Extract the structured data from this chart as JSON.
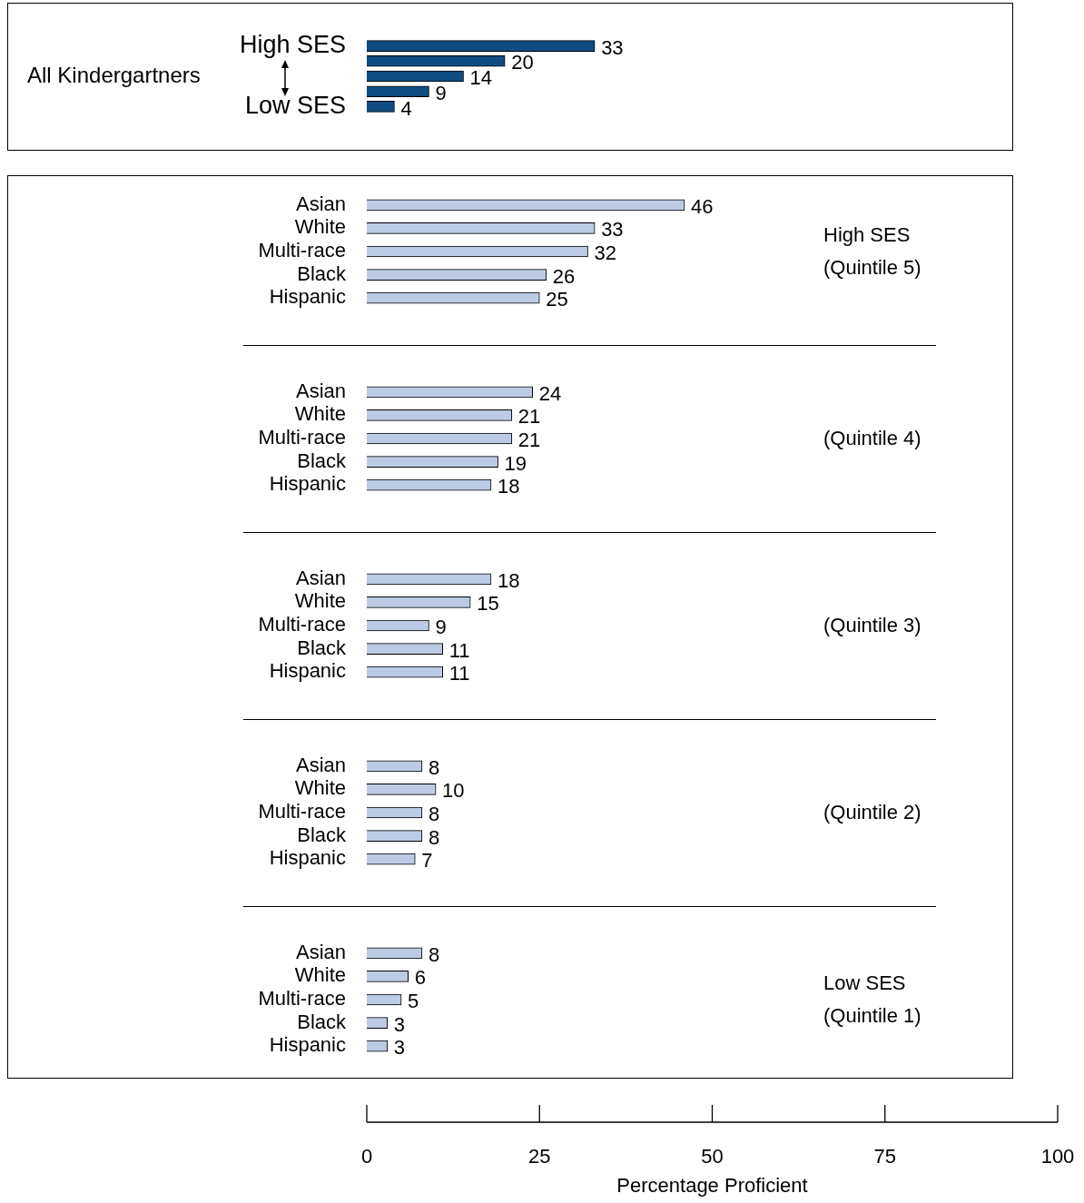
{
  "chart_data": [
    {
      "type": "bar",
      "orientation": "horizontal",
      "categories": [
        "High SES",
        null,
        null,
        null,
        "Low SES"
      ],
      "values": [
        33,
        20,
        14,
        9,
        4
      ],
      "color": "#0f4c81",
      "xlim": [
        0,
        100
      ],
      "xticks": [
        0,
        25,
        50,
        75,
        100
      ],
      "data_labels": true,
      "tick_labels": "y",
      "annotations": [
        "All Kindergartners"
      ]
    },
    {
      "type": "bar",
      "orientation": "horizontal",
      "categories": [
        "Asian",
        "White",
        "Multi-race",
        "Black",
        "Hispanic"
      ],
      "values": [
        46,
        33,
        32,
        26,
        25
      ],
      "color": "#bccbe3",
      "xlim": [
        0,
        100
      ],
      "xticks": [
        0,
        25,
        50,
        75,
        100
      ],
      "data_labels": true,
      "tick_labels": "y",
      "annotations": [
        "High SES",
        "(Quintile 5)"
      ]
    },
    {
      "type": "bar",
      "orientation": "horizontal",
      "categories": [
        "Asian",
        "White",
        "Multi-race",
        "Black",
        "Hispanic"
      ],
      "values": [
        24,
        21,
        21,
        19,
        18
      ],
      "color": "#bccbe3",
      "xlim": [
        0,
        100
      ],
      "xticks": [
        0,
        25,
        50,
        75,
        100
      ],
      "data_labels": true,
      "tick_labels": "y",
      "annotations": [
        "(Quintile 4)"
      ]
    },
    {
      "type": "bar",
      "orientation": "horizontal",
      "categories": [
        "Asian",
        "White",
        "Multi-race",
        "Black",
        "Hispanic"
      ],
      "values": [
        18,
        15,
        9,
        11,
        11
      ],
      "color": "#bccbe3",
      "xlim": [
        0,
        100
      ],
      "xticks": [
        0,
        25,
        50,
        75,
        100
      ],
      "data_labels": true,
      "tick_labels": "y",
      "annotations": [
        "(Quintile 3)"
      ]
    },
    {
      "type": "bar",
      "orientation": "horizontal",
      "categories": [
        "Asian",
        "White",
        "Multi-race",
        "Black",
        "Hispanic"
      ],
      "values": [
        8,
        10,
        8,
        8,
        7
      ],
      "color": "#bccbe3",
      "xlim": [
        0,
        100
      ],
      "xticks": [
        0,
        25,
        50,
        75,
        100
      ],
      "data_labels": true,
      "tick_labels": "y",
      "annotations": [
        "(Quintile 2)"
      ]
    },
    {
      "type": "bar",
      "orientation": "horizontal",
      "categories": [
        "Asian",
        "White",
        "Multi-race",
        "Black",
        "Hispanic"
      ],
      "values": [
        8,
        6,
        5,
        3,
        3
      ],
      "color": "#bccbe3",
      "xlim": [
        0,
        100
      ],
      "xticks": [
        0,
        25,
        50,
        75,
        100
      ],
      "data_labels": true,
      "xlabel": "Percentage Proficient",
      "annotations": [
        "Low SES",
        "(Quintile 1)"
      ]
    }
  ]
}
